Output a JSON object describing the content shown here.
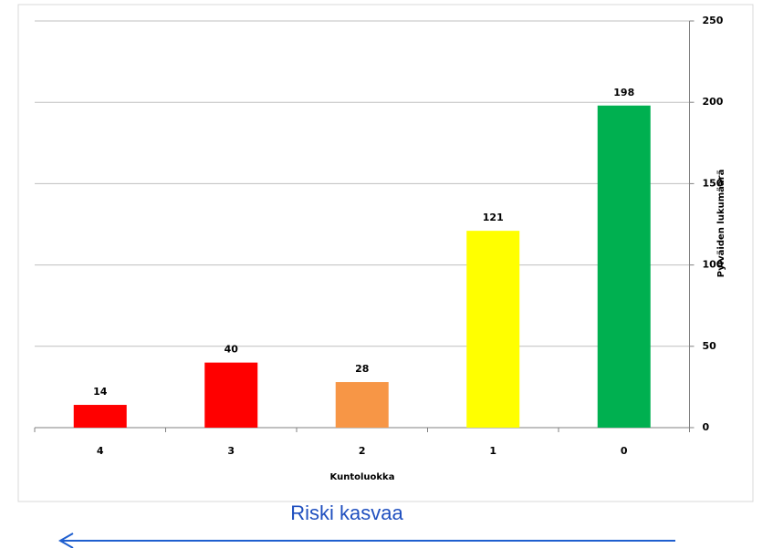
{
  "chart_data": {
    "type": "bar",
    "categories": [
      "4",
      "3",
      "2",
      "1",
      "0"
    ],
    "values": [
      14,
      40,
      28,
      121,
      198
    ],
    "colors": [
      "#ff0000",
      "#ff0000",
      "#f79646",
      "#ffff00",
      "#00b050"
    ],
    "xlabel": "Kuntoluokka",
    "ylabel": "Pylväiden lukumäärä",
    "ylim": [
      0,
      250
    ],
    "yticks": [
      0,
      50,
      100,
      150,
      200,
      250
    ],
    "grid": true,
    "yaxis_side": "right",
    "annotation": "Riski kasvaa"
  }
}
